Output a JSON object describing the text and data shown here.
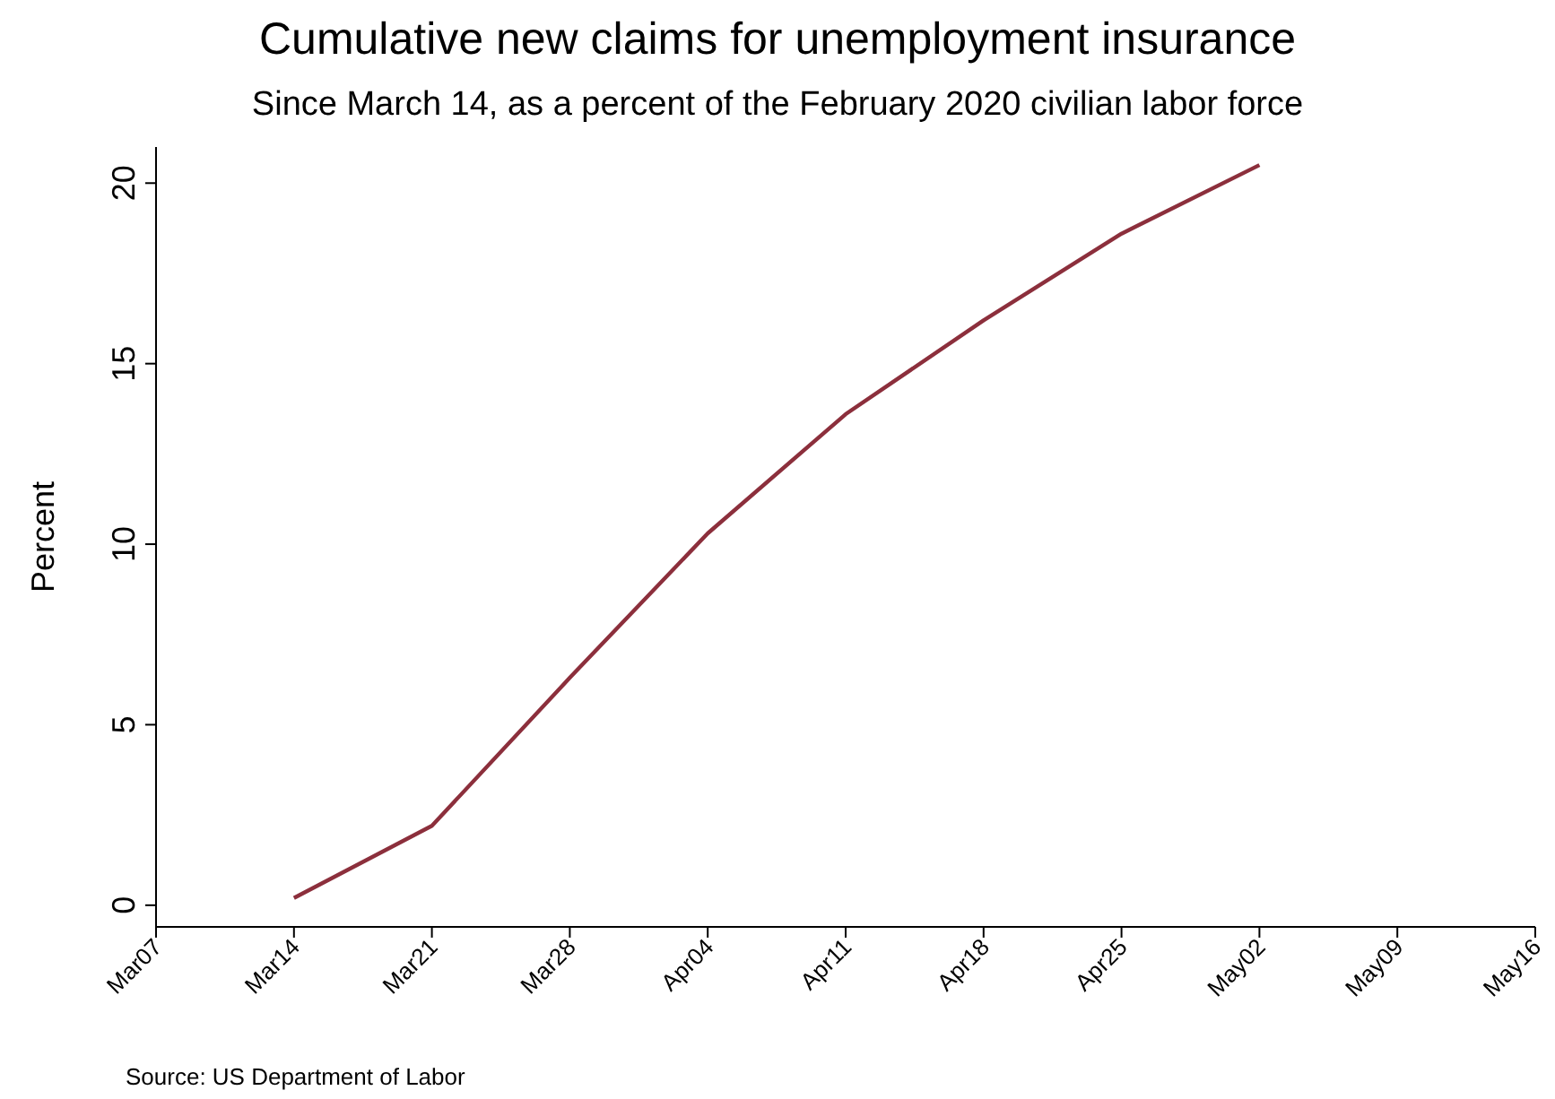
{
  "chart_data": {
    "type": "line",
    "title": "Cumulative new claims for unemployment insurance",
    "subtitle": "Since March 14, as a percent of the February 2020 civilian labor force",
    "ylabel": "Percent",
    "annotations": [
      "Source: US Department of Labor"
    ],
    "x": [
      "2020-03-14",
      "2020-03-21",
      "2020-03-28",
      "2020-04-04",
      "2020-04-11",
      "2020-04-18",
      "2020-04-25",
      "2020-05-02"
    ],
    "series": [
      {
        "color": "#8c2f3c",
        "values": [
          0.2,
          2.2,
          6.3,
          10.3,
          13.6,
          16.2,
          18.6,
          20.5
        ]
      }
    ],
    "xlim": [
      "2020-03-07",
      "2020-05-16"
    ],
    "xticks": [
      {
        "value": "2020-03-07",
        "label": "Mar07"
      },
      {
        "value": "2020-03-14",
        "label": "Mar14"
      },
      {
        "value": "2020-03-21",
        "label": "Mar21"
      },
      {
        "value": "2020-03-28",
        "label": "Mar28"
      },
      {
        "value": "2020-04-04",
        "label": "Apr04"
      },
      {
        "value": "2020-04-11",
        "label": "Apr11"
      },
      {
        "value": "2020-04-18",
        "label": "Apr18"
      },
      {
        "value": "2020-04-25",
        "label": "Apr25"
      },
      {
        "value": "2020-05-02",
        "label": "May02"
      },
      {
        "value": "2020-05-09",
        "label": "May09"
      },
      {
        "value": "2020-05-16",
        "label": "May16"
      }
    ],
    "ylim": [
      -0.6,
      21
    ],
    "yticks": [
      0,
      5,
      10,
      15,
      20
    ],
    "grid": false,
    "marker": "none",
    "line_style": "solid"
  }
}
